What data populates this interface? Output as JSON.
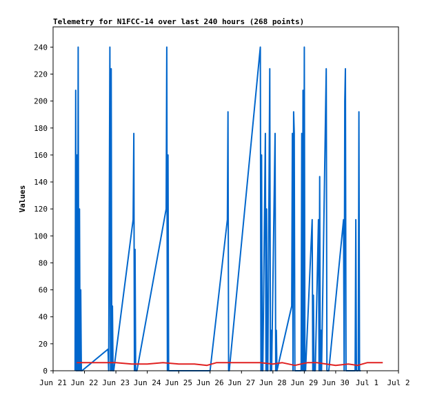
{
  "chart_data": {
    "type": "line",
    "title": "Telemetry for N1FCC-14 over last 240 hours (268 points)",
    "xlabel": "",
    "ylabel": "Values",
    "x_unit": "day",
    "xlim": [
      0,
      11
    ],
    "ylim": [
      0,
      255
    ],
    "x_ticks": [
      {
        "x": 0,
        "label": "Jun 21"
      },
      {
        "x": 1,
        "label": "Jun 22"
      },
      {
        "x": 2,
        "label": "Jun 23"
      },
      {
        "x": 3,
        "label": "Jun 24"
      },
      {
        "x": 4,
        "label": "Jun 25"
      },
      {
        "x": 5,
        "label": "Jun 26"
      },
      {
        "x": 6,
        "label": "Jun 27"
      },
      {
        "x": 7,
        "label": "Jun 28"
      },
      {
        "x": 8,
        "label": "Jun 29"
      },
      {
        "x": 9,
        "label": "Jun 30"
      },
      {
        "x": 10,
        "label": "Jul 1"
      },
      {
        "x": 11,
        "label": "Jul 2"
      }
    ],
    "y_ticks": [
      0,
      20,
      40,
      60,
      80,
      100,
      120,
      140,
      160,
      180,
      200,
      220,
      240
    ],
    "grid": false,
    "legend": "none",
    "series": [
      {
        "color": "#0066cc",
        "x": [
          0.7,
          0.72,
          0.74,
          0.76,
          0.78,
          0.8,
          0.82,
          0.84,
          0.86,
          0.88,
          0.9,
          0.92,
          1.75,
          1.77,
          1.79,
          1.81,
          1.83,
          1.85,
          1.87,
          1.89,
          1.91,
          1.93,
          2.55,
          2.57,
          2.59,
          2.61,
          2.63,
          2.65,
          2.67,
          3.6,
          3.62,
          3.64,
          3.66,
          3.68,
          4.85,
          5.0,
          5.55,
          5.57,
          5.59,
          5.61,
          6.6,
          6.62,
          6.64,
          6.66,
          6.68,
          6.76,
          6.78,
          6.8,
          6.82,
          6.84,
          6.9,
          6.92,
          6.94,
          6.96,
          7.07,
          7.09,
          7.11,
          7.13,
          7.6,
          7.62,
          7.64,
          7.66,
          7.68,
          7.7,
          7.72,
          7.9,
          7.92,
          7.94,
          7.96,
          7.98,
          8.0,
          8.02,
          8.04,
          8.25,
          8.27,
          8.29,
          8.31,
          8.33,
          8.35,
          8.45,
          8.47,
          8.49,
          8.51,
          8.53,
          8.55,
          8.7,
          8.72,
          8.74,
          8.76,
          8.78,
          9.25,
          9.27,
          9.29,
          9.31,
          9.33,
          9.35,
          9.37,
          9.39,
          9.41,
          9.6,
          9.62,
          9.64,
          9.66,
          9.68,
          9.7,
          9.72,
          9.74,
          9.76,
          9.78,
          9.8
        ],
        "y": [
          0,
          208,
          0,
          160,
          0,
          240,
          0,
          120,
          0,
          60,
          0,
          0,
          16,
          0,
          120,
          240,
          0,
          224,
          0,
          48,
          0,
          0,
          112,
          176,
          0,
          90,
          0,
          0,
          0,
          120,
          240,
          0,
          160,
          0,
          0,
          0,
          112,
          192,
          0,
          0,
          240,
          0,
          160,
          0,
          0,
          176,
          0,
          120,
          0,
          0,
          224,
          0,
          30,
          0,
          176,
          0,
          30,
          0,
          48,
          176,
          0,
          192,
          176,
          0,
          0,
          0,
          176,
          0,
          208,
          0,
          240,
          0,
          0,
          112,
          0,
          56,
          0,
          0,
          0,
          112,
          0,
          144,
          0,
          30,
          0,
          224,
          0,
          0,
          0,
          0,
          112,
          0,
          200,
          224,
          0,
          0,
          0,
          0,
          0,
          0,
          0,
          112,
          0,
          0,
          0,
          0,
          192,
          0,
          0,
          0
        ]
      },
      {
        "color": "#e02020",
        "x": [
          0.75,
          1.5,
          2.0,
          2.5,
          3.0,
          3.5,
          4.0,
          4.5,
          4.9,
          5.2,
          5.6,
          6.0,
          6.6,
          7.0,
          7.3,
          7.7,
          7.9,
          8.1,
          8.4,
          8.7,
          9.0,
          9.4,
          9.7,
          10.0,
          10.5
        ],
        "y": [
          6,
          6,
          6,
          5,
          5,
          6,
          5,
          5,
          4,
          6,
          6,
          6,
          6,
          5,
          6,
          4,
          5,
          6,
          6,
          5,
          4,
          5,
          4,
          6,
          6
        ]
      }
    ]
  }
}
